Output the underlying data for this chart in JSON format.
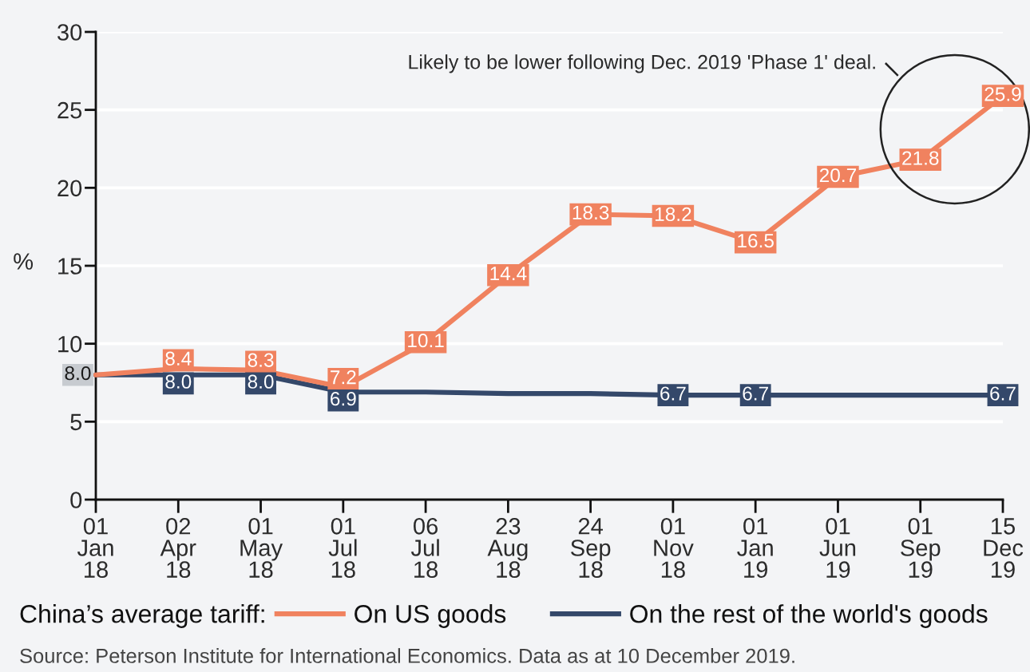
{
  "chart_data": {
    "type": "line",
    "categories": [
      "01\nJan\n18",
      "02\nApr\n18",
      "01\nMay\n18",
      "01\nJul\n18",
      "06\nJul\n18",
      "23\nAug\n18",
      "24\nSep\n18",
      "01\nNov\n18",
      "01\nJan\n19",
      "01\nJun\n19",
      "01\nSep\n19",
      "15\nDec\n19"
    ],
    "ylabel": "%",
    "ylim": [
      0,
      30
    ],
    "yticks": [
      0,
      5,
      10,
      15,
      20,
      25,
      30
    ],
    "grid": "y",
    "legend": "bottom",
    "legend_title": "China’s average tariff:",
    "series": [
      {
        "name": "On US goods",
        "color": "#f0825f",
        "values": [
          8.0,
          8.4,
          8.3,
          7.2,
          10.1,
          14.4,
          18.3,
          18.2,
          16.5,
          20.7,
          21.8,
          25.9
        ],
        "value_labels": [
          null,
          "8.4",
          "8.3",
          "7.2",
          "10.1",
          "14.4",
          "18.3",
          "18.2",
          "16.5",
          "20.7",
          "21.8",
          "25.9"
        ]
      },
      {
        "name": "On the rest of the world's goods",
        "color": "#34486a",
        "values": [
          8.0,
          8.0,
          8.0,
          6.9,
          6.9,
          6.8,
          6.8,
          6.7,
          6.7,
          6.7,
          6.7,
          6.7
        ],
        "value_labels": [
          null,
          "8.0",
          "8.0",
          "6.9",
          null,
          null,
          null,
          "6.7",
          "6.7",
          null,
          null,
          "6.7"
        ]
      }
    ],
    "annotations": [
      {
        "text": "8.0",
        "x": "01\nJan\n18",
        "y": 8.0
      },
      "Likely to be lower following Dec. 2019 'Phase 1' deal.",
      "Source: Peterson Institute for International Economics. Data as at 10 December 2019."
    ]
  }
}
